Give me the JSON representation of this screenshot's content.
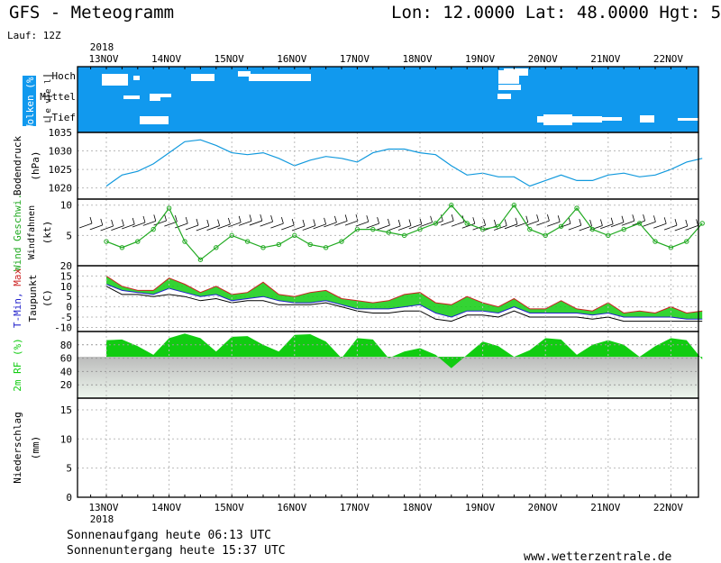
{
  "header": {
    "title": "GFS - Meteogramm",
    "location": "Lon: 12.0000 Lat: 48.0000 Hgt: 5",
    "run": "Lauf: 12Z"
  },
  "year": "2018",
  "dates": [
    "13NOV",
    "14NOV",
    "15NOV",
    "16NOV",
    "17NOV",
    "18NOV",
    "19NOV",
    "20NOV",
    "21NOV",
    "22NOV"
  ],
  "footer": {
    "sunrise": "Sonnenaufgang heute 06:13 UTC",
    "sunset": "Sonnenuntergang heute 15:37 UTC",
    "site": "www.wetterzentrale.de"
  },
  "colors": {
    "cloud_bg": "#1199ee",
    "pressure": "#1199dd",
    "wind_speed": "#22aa22",
    "tmin": "#2222cc",
    "tmax": "#cc2222",
    "dewpoint": "#000000",
    "rh": "#11cc11",
    "temp_fill_warm": "#cccc22",
    "temp_fill_cool": "#11cc11"
  },
  "chart_data": [
    {
      "type": "area",
      "panel": "clouds",
      "ylabel": "Wolken (%)",
      "ylabel2": "L e v e l",
      "levels": [
        "Hoch",
        "Mittel",
        "Tief"
      ],
      "note": "white patches mark cloud-free periods per level",
      "clear_periods": {
        "Hoch": [
          [
            "13NOV 06",
            "13NOV 18"
          ],
          [
            "13NOV 21",
            "14NOV 03"
          ],
          [
            "14NOV 12",
            "14NOV 21"
          ],
          [
            "15NOV 09",
            "16NOV 00"
          ],
          [
            "19NOV 09",
            "19NOV 15"
          ]
        ],
        "Mittel": [
          [
            "13NOV 18",
            "13NOV 21"
          ],
          [
            "13NOV 21",
            "14NOV 03"
          ],
          [
            "14NOV 18",
            "14NOV 21"
          ],
          [
            "19NOV 09",
            "19NOV 12"
          ]
        ],
        "Tief": [
          [
            "14NOV 00",
            "14NOV 09"
          ],
          [
            "20NOV 06",
            "20NOV 21"
          ],
          [
            "21NOV 12",
            "21NOV 15"
          ]
        ]
      }
    },
    {
      "type": "line",
      "panel": "pressure",
      "ylabel": "Bodendruck",
      "unit": "(hPa)",
      "yticks": [
        1020,
        1025,
        1030,
        1035
      ],
      "ylim": [
        1017,
        1035
      ],
      "x_days": [
        0,
        0.25,
        0.5,
        0.75,
        1.0,
        1.25,
        1.5,
        1.75,
        2.0,
        2.25,
        2.5,
        2.75,
        3.0,
        3.25,
        3.5,
        3.75,
        4.0,
        4.25,
        4.5,
        4.75,
        5.0,
        5.25,
        5.5,
        5.75,
        6.0,
        6.25,
        6.5,
        6.75,
        7.0,
        7.25,
        7.5,
        7.75,
        8.0,
        8.25,
        8.5,
        8.75,
        9.0,
        9.25,
        9.5
      ],
      "series": [
        {
          "values": [
            1020.5,
            1023.5,
            1024.5,
            1026.5,
            1029.5,
            1032.5,
            1033,
            1031.5,
            1029.5,
            1029,
            1029.5,
            1028,
            1026,
            1027.5,
            1028.5,
            1028,
            1027,
            1029.5,
            1030.5,
            1030.5,
            1029.5,
            1029,
            1026,
            1023.5,
            1024,
            1023,
            1023,
            1020.5,
            1022,
            1023.5,
            1022,
            1022,
            1023.5,
            1024,
            1023,
            1023.5,
            1025,
            1027,
            1028
          ]
        }
      ]
    },
    {
      "type": "line",
      "panel": "wind",
      "ylabel": "Wind Geschwi.",
      "ylabel2": "Windfahnen",
      "unit": "(kt)",
      "yticks": [
        5,
        10
      ],
      "ylim": [
        0,
        11
      ],
      "x_days": [
        0,
        0.25,
        0.5,
        0.75,
        1.0,
        1.25,
        1.5,
        1.75,
        2.0,
        2.25,
        2.5,
        2.75,
        3.0,
        3.25,
        3.5,
        3.75,
        4.0,
        4.25,
        4.5,
        4.75,
        5.0,
        5.25,
        5.5,
        5.75,
        6.0,
        6.25,
        6.5,
        6.75,
        7.0,
        7.25,
        7.5,
        7.75,
        8.0,
        8.25,
        8.5,
        8.75,
        9.0,
        9.25,
        9.5
      ],
      "series": [
        {
          "name": "Wind Geschwi.",
          "values": [
            4,
            3,
            4,
            6,
            9.5,
            4,
            1,
            3,
            5,
            4,
            3,
            3.5,
            5,
            3.5,
            3,
            4,
            6,
            6,
            5.5,
            5,
            6,
            7,
            10,
            7,
            6,
            6.5,
            10,
            6,
            5,
            6.5,
            9.5,
            6,
            5,
            6,
            7,
            4,
            3,
            4,
            7
          ]
        }
      ]
    },
    {
      "type": "line",
      "panel": "temperature",
      "ylabel": "T-Min, Max",
      "ylabel2": "Taupunkt",
      "unit": "(C)",
      "yticks": [
        -10,
        -5,
        0,
        5,
        10,
        15,
        20
      ],
      "ylim": [
        -12,
        20
      ],
      "x_days": [
        0,
        0.25,
        0.5,
        0.75,
        1.0,
        1.25,
        1.5,
        1.75,
        2.0,
        2.25,
        2.5,
        2.75,
        3.0,
        3.25,
        3.5,
        3.75,
        4.0,
        4.25,
        4.5,
        4.75,
        5.0,
        5.25,
        5.5,
        5.75,
        6.0,
        6.25,
        6.5,
        6.75,
        7.0,
        7.25,
        7.5,
        7.75,
        8.0,
        8.25,
        8.5,
        8.75,
        9.0,
        9.25,
        9.5
      ],
      "series": [
        {
          "name": "T-Max",
          "values": [
            15,
            10,
            8,
            8,
            14,
            11,
            7,
            10,
            6,
            7,
            12,
            6,
            5,
            7,
            8,
            4,
            3,
            2,
            3,
            6,
            7,
            2,
            1,
            5,
            2,
            0,
            4,
            -1,
            -1,
            3,
            -1,
            -2,
            2,
            -3,
            -2,
            -3,
            0,
            -3,
            -2
          ]
        },
        {
          "name": "T-Min",
          "values": [
            11,
            8,
            7,
            6,
            9,
            7,
            5,
            6,
            3,
            4,
            5,
            3,
            2,
            2,
            3,
            1,
            -1,
            -1,
            -1,
            0,
            1,
            -3,
            -5,
            -2,
            -2,
            -3,
            0,
            -3,
            -3,
            -3,
            -3,
            -4,
            -3,
            -5,
            -5,
            -5,
            -5,
            -6,
            -6
          ]
        },
        {
          "name": "Taupunkt",
          "values": [
            10,
            6,
            6,
            5,
            6,
            5,
            3,
            4,
            2,
            3,
            3,
            1,
            1,
            1,
            2,
            0,
            -2,
            -3,
            -3,
            -2,
            -2,
            -6,
            -7,
            -4,
            -4,
            -5,
            -2,
            -5,
            -5,
            -5,
            -5,
            -6,
            -5,
            -7,
            -7,
            -7,
            -7,
            -7,
            -7
          ]
        }
      ]
    },
    {
      "type": "area",
      "panel": "humidity",
      "ylabel": "2m RF (%)",
      "yticks": [
        20,
        40,
        60,
        80
      ],
      "ylim": [
        0,
        100
      ],
      "x_days": [
        0,
        0.25,
        0.5,
        0.75,
        1.0,
        1.25,
        1.5,
        1.75,
        2.0,
        2.25,
        2.5,
        2.75,
        3.0,
        3.25,
        3.5,
        3.75,
        4.0,
        4.25,
        4.5,
        4.75,
        5.0,
        5.25,
        5.5,
        5.75,
        6.0,
        6.25,
        6.5,
        6.75,
        7.0,
        7.25,
        7.5,
        7.75,
        8.0,
        8.25,
        8.5,
        8.75,
        9.0,
        9.25,
        9.5
      ],
      "series": [
        {
          "name": "2m RF (%)",
          "values": [
            87,
            88,
            78,
            65,
            90,
            97,
            90,
            70,
            92,
            93,
            80,
            70,
            95,
            96,
            85,
            60,
            90,
            88,
            60,
            70,
            75,
            65,
            45,
            65,
            85,
            78,
            62,
            72,
            90,
            88,
            65,
            80,
            87,
            80,
            62,
            78,
            90,
            87,
            58
          ]
        }
      ]
    },
    {
      "type": "bar",
      "panel": "precipitation",
      "ylabel": "Niederschlag",
      "unit": "(mm)",
      "yticks": [
        0,
        5,
        10,
        15
      ],
      "ylim": [
        0,
        17
      ],
      "series": [
        {
          "values": []
        }
      ]
    }
  ]
}
